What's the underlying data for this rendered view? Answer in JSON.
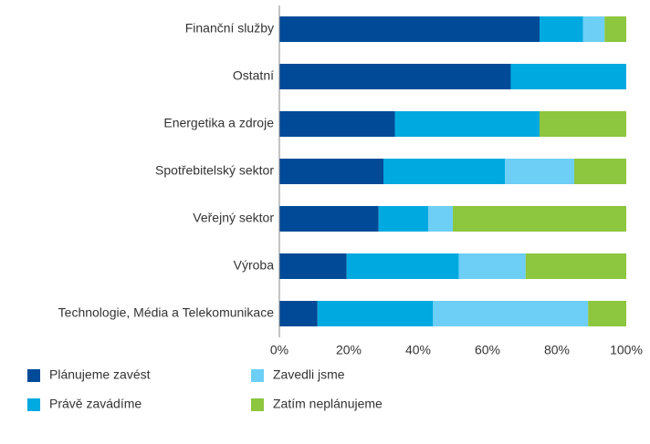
{
  "chart_data": {
    "type": "bar",
    "orientation": "horizontal",
    "stacked": true,
    "categories": [
      "Finanční služby",
      "Ostatní",
      "Energetika a zdroje",
      "Spotřebitelský sektor",
      "Veřejný sektor",
      "Výroba",
      "Technologie, Média a Telekomunikace"
    ],
    "series": [
      {
        "name": "Plánujeme zavést",
        "color": "#004a98",
        "values": [
          75,
          66.7,
          33.3,
          30,
          28.6,
          19.4,
          11
        ]
      },
      {
        "name": "Právě zavádíme",
        "color": "#00a9e0",
        "values": [
          12.5,
          33.3,
          41.7,
          35,
          14.3,
          32.3,
          33.3
        ]
      },
      {
        "name": "Zavedli jsme",
        "color": "#6dcff6",
        "values": [
          6.25,
          0,
          0,
          20,
          7.1,
          19.3,
          44.7
        ]
      },
      {
        "name": "Zatím neplánujeme",
        "color": "#8dc63f",
        "values": [
          6.25,
          0,
          25,
          15,
          50,
          29,
          11
        ]
      }
    ],
    "xlim": [
      0,
      100
    ],
    "xticks": [
      {
        "value": 0,
        "label": "0%"
      },
      {
        "value": 20,
        "label": "20%"
      },
      {
        "value": 40,
        "label": "40%"
      },
      {
        "value": 60,
        "label": "60%"
      },
      {
        "value": 80,
        "label": "80%"
      },
      {
        "value": 100,
        "label": "100%"
      }
    ],
    "grid": false,
    "legend": "bottom"
  }
}
